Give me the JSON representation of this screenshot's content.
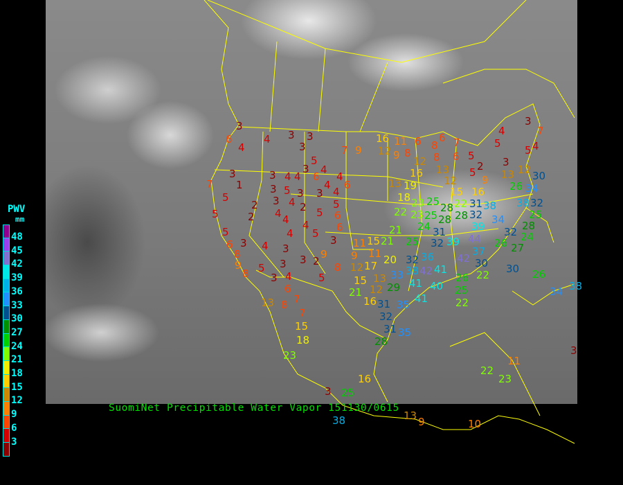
{
  "caption": "SuomiNet Precipitable Water Vapor 151130/0615",
  "legend": {
    "title": "PWV",
    "unit": "mm",
    "ticks": [
      "48",
      "45",
      "42",
      "39",
      "36",
      "33",
      "30",
      "27",
      "24",
      "21",
      "18",
      "15",
      "12",
      "9",
      "6",
      "3"
    ],
    "colors_top_to_bottom": [
      "#900090",
      "#9a40f0",
      "#8070d0",
      "#00e8e8",
      "#00b0e8",
      "#2090ff",
      "#005090",
      "#009000",
      "#00d000",
      "#80ff00",
      "#f0f000",
      "#ffd000",
      "#cc8800",
      "#ff8000",
      "#ff4400",
      "#d40000",
      "#8b0000"
    ]
  },
  "border_color": "#ffff00",
  "stations": [
    "3",
    "6",
    "4",
    "4",
    "3",
    "3",
    "3",
    "7",
    "9",
    "5",
    "3",
    "4",
    "6",
    "4",
    "3",
    "7",
    "1",
    "3",
    "4",
    "4",
    "3",
    "5",
    "4",
    "3",
    "3",
    "4",
    "6",
    "3",
    "4",
    "5",
    "5",
    "2",
    "2",
    "5",
    "6",
    "2",
    "4",
    "4",
    "5",
    "4",
    "6",
    "5",
    "5",
    "4",
    "3",
    "3",
    "6",
    "4",
    "8",
    "3",
    "9",
    "9",
    "3",
    "3",
    "2",
    "8",
    "8",
    "5",
    "3",
    "4",
    "5",
    "6",
    "13",
    "8",
    "7",
    "7",
    "15",
    "18",
    "23",
    "16",
    "25",
    "3",
    "38",
    "13",
    "9",
    "10",
    "22",
    "23",
    "11",
    "3",
    "34",
    "38",
    "16",
    "11",
    "12",
    "9",
    "6",
    "8",
    "6",
    "8",
    "7",
    "8",
    "6",
    "5",
    "2",
    "5",
    "9",
    "4",
    "3",
    "7",
    "5",
    "5",
    "4",
    "3",
    "13",
    "12",
    "30",
    "26",
    "34",
    "12",
    "16",
    "13",
    "12",
    "13",
    "19",
    "15",
    "16",
    "18",
    "22",
    "23",
    "25",
    "22",
    "23",
    "28",
    "28",
    "31",
    "38",
    "25",
    "28",
    "32",
    "38",
    "32",
    "25",
    "24",
    "31",
    "34",
    "28",
    "21",
    "21",
    "32",
    "39",
    "44",
    "32",
    "24",
    "39",
    "37",
    "26",
    "27",
    "25",
    "11",
    "11",
    "15",
    "9",
    "17",
    "12",
    "13",
    "20",
    "32",
    "36",
    "30",
    "42",
    "15",
    "12",
    "21",
    "16",
    "29",
    "38",
    "42",
    "41",
    "33",
    "41",
    "40",
    "26",
    "25",
    "22",
    "30",
    "26",
    "22",
    "41",
    "31",
    "35",
    "32",
    "31",
    "35",
    "28"
  ]
}
